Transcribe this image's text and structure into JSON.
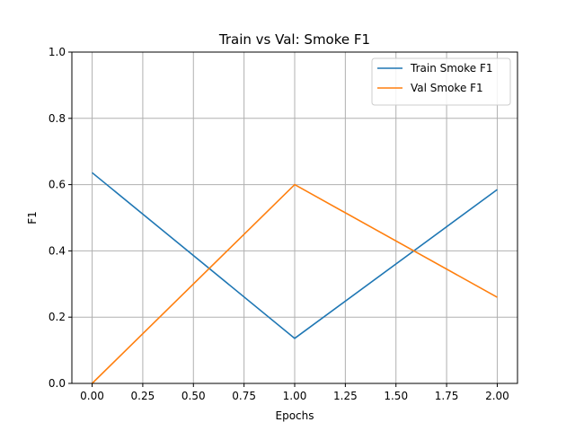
{
  "chart_data": {
    "type": "line",
    "title": "Train vs Val: Smoke F1",
    "xlabel": "Epochs",
    "ylabel": "F1",
    "xlim": [
      -0.1,
      2.1
    ],
    "ylim": [
      0.0,
      1.0
    ],
    "xticks": [
      "0.00",
      "0.25",
      "0.50",
      "0.75",
      "1.00",
      "1.25",
      "1.50",
      "1.75",
      "2.00"
    ],
    "yticks": [
      "0.0",
      "0.2",
      "0.4",
      "0.6",
      "0.8",
      "1.0"
    ],
    "grid": true,
    "legend_position": "top-right",
    "x": [
      0,
      1,
      2
    ],
    "series": [
      {
        "name": "Train Smoke F1",
        "color": "#1f77b4",
        "values": [
          0.636,
          0.136,
          0.585
        ]
      },
      {
        "name": "Val Smoke F1",
        "color": "#ff7f0e",
        "values": [
          0.0,
          0.6,
          0.26
        ]
      }
    ]
  }
}
